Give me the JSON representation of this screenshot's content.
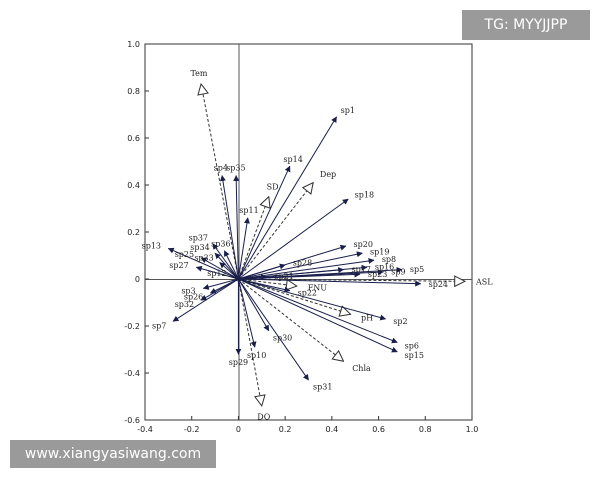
{
  "watermarks": {
    "top_right": "TG: MYYJJPP",
    "bottom_left": "www.xiangyasiwang.com"
  },
  "chart_data": {
    "type": "scatter",
    "subtype": "biplot",
    "title": "",
    "xlabel": "",
    "ylabel": "",
    "xlim": [
      -0.4,
      1.0
    ],
    "ylim": [
      -0.6,
      1.0
    ],
    "xticks": [
      -0.4,
      -0.2,
      0,
      0.2,
      0.4,
      0.6,
      0.8,
      1.0
    ],
    "yticks": [
      -0.6,
      -0.4,
      -0.2,
      0,
      0.2,
      0.4,
      0.6,
      0.8,
      1.0
    ],
    "xtick_labels": [
      "-0.4",
      "-0.2",
      "0",
      "0.2",
      "0.4",
      "0.6",
      "0.8",
      "1.0"
    ],
    "ytick_labels": [
      "-0.6",
      "-0.4",
      "-0.2",
      "0",
      "0.2",
      "0.4",
      "0.6",
      "0.8",
      "1.0"
    ],
    "grid": false,
    "colors": {
      "species": "#1a1f4a",
      "environment": "#333333"
    },
    "environment": [
      {
        "name": "Tem",
        "x": -0.16,
        "y": 0.83
      },
      {
        "name": "SD",
        "x": 0.13,
        "y": 0.35
      },
      {
        "name": "Dep",
        "x": 0.32,
        "y": 0.41
      },
      {
        "name": "ASL",
        "x": 0.97,
        "y": -0.01
      },
      {
        "name": "FNU",
        "x": 0.25,
        "y": -0.03
      },
      {
        "name": "pH",
        "x": 0.48,
        "y": -0.15
      },
      {
        "name": "Chla",
        "x": 0.45,
        "y": -0.35
      },
      {
        "name": "DO",
        "x": 0.1,
        "y": -0.54
      }
    ],
    "species": [
      {
        "name": "sp1",
        "x": 0.42,
        "y": 0.69
      },
      {
        "name": "sp2",
        "x": 0.63,
        "y": -0.17
      },
      {
        "name": "sp3",
        "x": -0.15,
        "y": -0.04
      },
      {
        "name": "sp4",
        "x": -0.07,
        "y": 0.44
      },
      {
        "name": "sp5",
        "x": 0.7,
        "y": 0.04
      },
      {
        "name": "sp6",
        "x": 0.68,
        "y": -0.27
      },
      {
        "name": "sp7",
        "x": -0.28,
        "y": -0.18
      },
      {
        "name": "sp8",
        "x": 0.58,
        "y": 0.08
      },
      {
        "name": "sp9",
        "x": 0.62,
        "y": 0.03
      },
      {
        "name": "sp10",
        "x": 0.07,
        "y": -0.29
      },
      {
        "name": "sp11",
        "x": 0.04,
        "y": 0.26
      },
      {
        "name": "sp12",
        "x": -0.02,
        "y": 0.01
      },
      {
        "name": "sp13",
        "x": -0.3,
        "y": 0.13
      },
      {
        "name": "sp14",
        "x": 0.22,
        "y": 0.48
      },
      {
        "name": "sp15",
        "x": 0.68,
        "y": -0.31
      },
      {
        "name": "sp16",
        "x": 0.55,
        "y": 0.05
      },
      {
        "name": "sp17",
        "x": 0.45,
        "y": 0.04
      },
      {
        "name": "sp18",
        "x": 0.47,
        "y": 0.34
      },
      {
        "name": "sp19",
        "x": 0.53,
        "y": 0.11
      },
      {
        "name": "sp20",
        "x": 0.46,
        "y": 0.14
      },
      {
        "name": "sp21",
        "x": 0.12,
        "y": 0.01
      },
      {
        "name": "sp22",
        "x": 0.22,
        "y": -0.05
      },
      {
        "name": "sp23",
        "x": 0.52,
        "y": 0.02
      },
      {
        "name": "sp24",
        "x": 0.78,
        "y": -0.02
      },
      {
        "name": "sp25",
        "x": -0.16,
        "y": 0.09
      },
      {
        "name": "sp26",
        "x": -0.12,
        "y": -0.06
      },
      {
        "name": "sp27",
        "x": -0.18,
        "y": 0.05
      },
      {
        "name": "sp28",
        "x": 0.2,
        "y": 0.06
      },
      {
        "name": "sp29",
        "x": 0.0,
        "y": -0.32
      },
      {
        "name": "sp30",
        "x": 0.13,
        "y": -0.22
      },
      {
        "name": "sp31",
        "x": 0.3,
        "y": -0.43
      },
      {
        "name": "sp32",
        "x": -0.16,
        "y": -0.09
      },
      {
        "name": "sp33",
        "x": -0.08,
        "y": 0.07
      },
      {
        "name": "sp34",
        "x": -0.1,
        "y": 0.11
      },
      {
        "name": "sp35",
        "x": -0.01,
        "y": 0.44
      },
      {
        "name": "sp36",
        "x": -0.06,
        "y": 0.12
      },
      {
        "name": "sp37",
        "x": -0.11,
        "y": 0.15
      }
    ]
  }
}
